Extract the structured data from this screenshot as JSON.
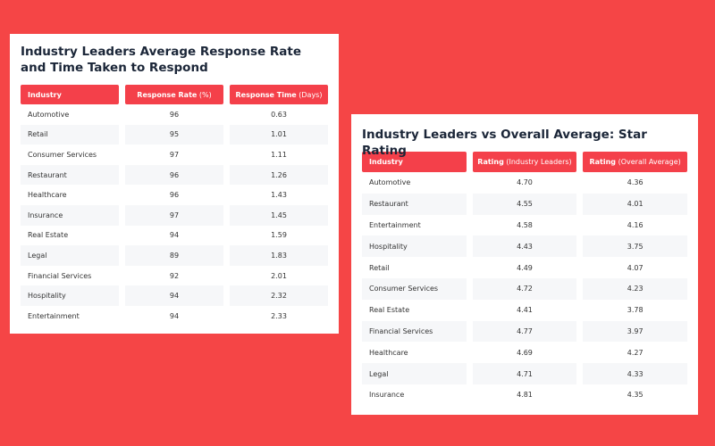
{
  "left": {
    "title": "Industry Leaders Average Response Rate and Time Taken to Respond",
    "headers": [
      {
        "main": "Industry",
        "sub": ""
      },
      {
        "main": "Response Rate",
        "sub": " (%)"
      },
      {
        "main": "Response Time",
        "sub": " (Days)"
      }
    ],
    "rows": [
      [
        "Automotive",
        "96",
        "0.63"
      ],
      [
        "Retail",
        "95",
        "1.01"
      ],
      [
        "Consumer Services",
        "97",
        "1.11"
      ],
      [
        "Restaurant",
        "96",
        "1.26"
      ],
      [
        "Healthcare",
        "96",
        "1.43"
      ],
      [
        "Insurance",
        "97",
        "1.45"
      ],
      [
        "Real Estate",
        "94",
        "1.59"
      ],
      [
        "Legal",
        "89",
        "1.83"
      ],
      [
        "Financial Services",
        "92",
        "2.01"
      ],
      [
        "Hospitality",
        "94",
        "2.32"
      ],
      [
        "Entertainment",
        "94",
        "2.33"
      ]
    ]
  },
  "right": {
    "title": "Industry Leaders vs Overall Average: Star Rating",
    "headers": [
      {
        "main": "Industry",
        "sub": ""
      },
      {
        "main": "Rating",
        "sub": " (Industry Leaders)"
      },
      {
        "main": "Rating",
        "sub": " (Overall Average)"
      }
    ],
    "rows": [
      [
        "Automotive",
        "4.70",
        "4.36"
      ],
      [
        "Restaurant",
        "4.55",
        "4.01"
      ],
      [
        "Entertainment",
        "4.58",
        "4.16"
      ],
      [
        "Hospitality",
        "4.43",
        "3.75"
      ],
      [
        "Retail",
        "4.49",
        "4.07"
      ],
      [
        "Consumer Services",
        "4.72",
        "4.23"
      ],
      [
        "Real Estate",
        "4.41",
        "3.78"
      ],
      [
        "Financial Services",
        "4.77",
        "3.97"
      ],
      [
        "Healthcare",
        "4.69",
        "4.27"
      ],
      [
        "Legal",
        "4.71",
        "4.33"
      ],
      [
        "Insurance",
        "4.81",
        "4.35"
      ]
    ]
  },
  "colors": {
    "background": "#f54546",
    "header": "#f4404a",
    "stripe": "#f6f7f9"
  }
}
